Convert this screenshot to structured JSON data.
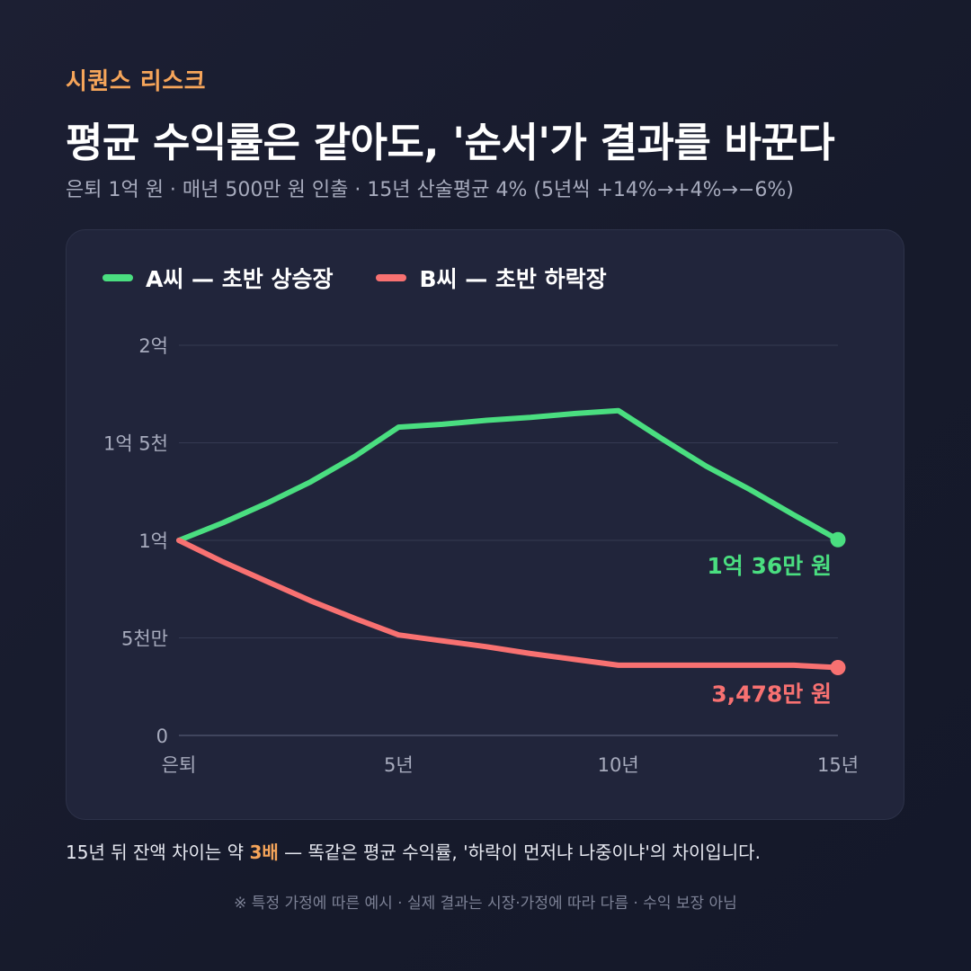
{
  "eyebrow": "시퀀스 리스크",
  "title": "평균 수익률은 같아도, '순서'가 결과를 바꾼다",
  "subtitle": "은퇴 1억 원 · 매년 500만 원 인출 · 15년 산술평균 4% (5년씩 +14%→+4%→−6%)",
  "footer": {
    "before": "15년 뒤 잔액 차이는 약 ",
    "highlight": "3배",
    "after": " — 똑같은 평균 수익률, '하락이 먼저냐 나중이냐'의 차이입니다."
  },
  "footnote": "※ 특정 가정에 따른 예시 · 실제 결과는 시장·가정에 따라 다름 · 수익 보장 아님",
  "colors": {
    "accent": "#f6a55a",
    "seriesA": "#4ade80",
    "seriesB": "#f87171"
  },
  "chart_data": {
    "type": "line",
    "x": [
      0,
      1,
      2,
      3,
      4,
      5,
      6,
      7,
      8,
      9,
      10,
      11,
      12,
      13,
      14,
      15
    ],
    "x_tick_values": [
      0,
      5,
      10,
      15
    ],
    "x_tick_labels": [
      "은퇴",
      "5년",
      "10년",
      "15년"
    ],
    "y_unit": "만 원",
    "ylim": [
      0,
      20000
    ],
    "y_tick_values": [
      0,
      5000,
      10000,
      15000,
      20000
    ],
    "y_tick_labels": [
      "0",
      "5천만",
      "1억",
      "1억 5천",
      "2억"
    ],
    "grid": true,
    "legend_position": "top-left",
    "series": [
      {
        "name": "A씨 — 초반 상승장",
        "color": "#4ade80",
        "values": [
          10000,
          10900,
          11900,
          13000,
          14300,
          15800,
          15950,
          16150,
          16300,
          16500,
          16650,
          15200,
          13800,
          12600,
          11300,
          10036
        ],
        "end_label": "1억 36만 원"
      },
      {
        "name": "B씨 — 초반 하락장",
        "color": "#f87171",
        "values": [
          10000,
          8900,
          7900,
          6900,
          6000,
          5150,
          4850,
          4550,
          4200,
          3900,
          3600,
          3600,
          3600,
          3600,
          3600,
          3478
        ],
        "end_label": "3,478만 원"
      }
    ]
  }
}
